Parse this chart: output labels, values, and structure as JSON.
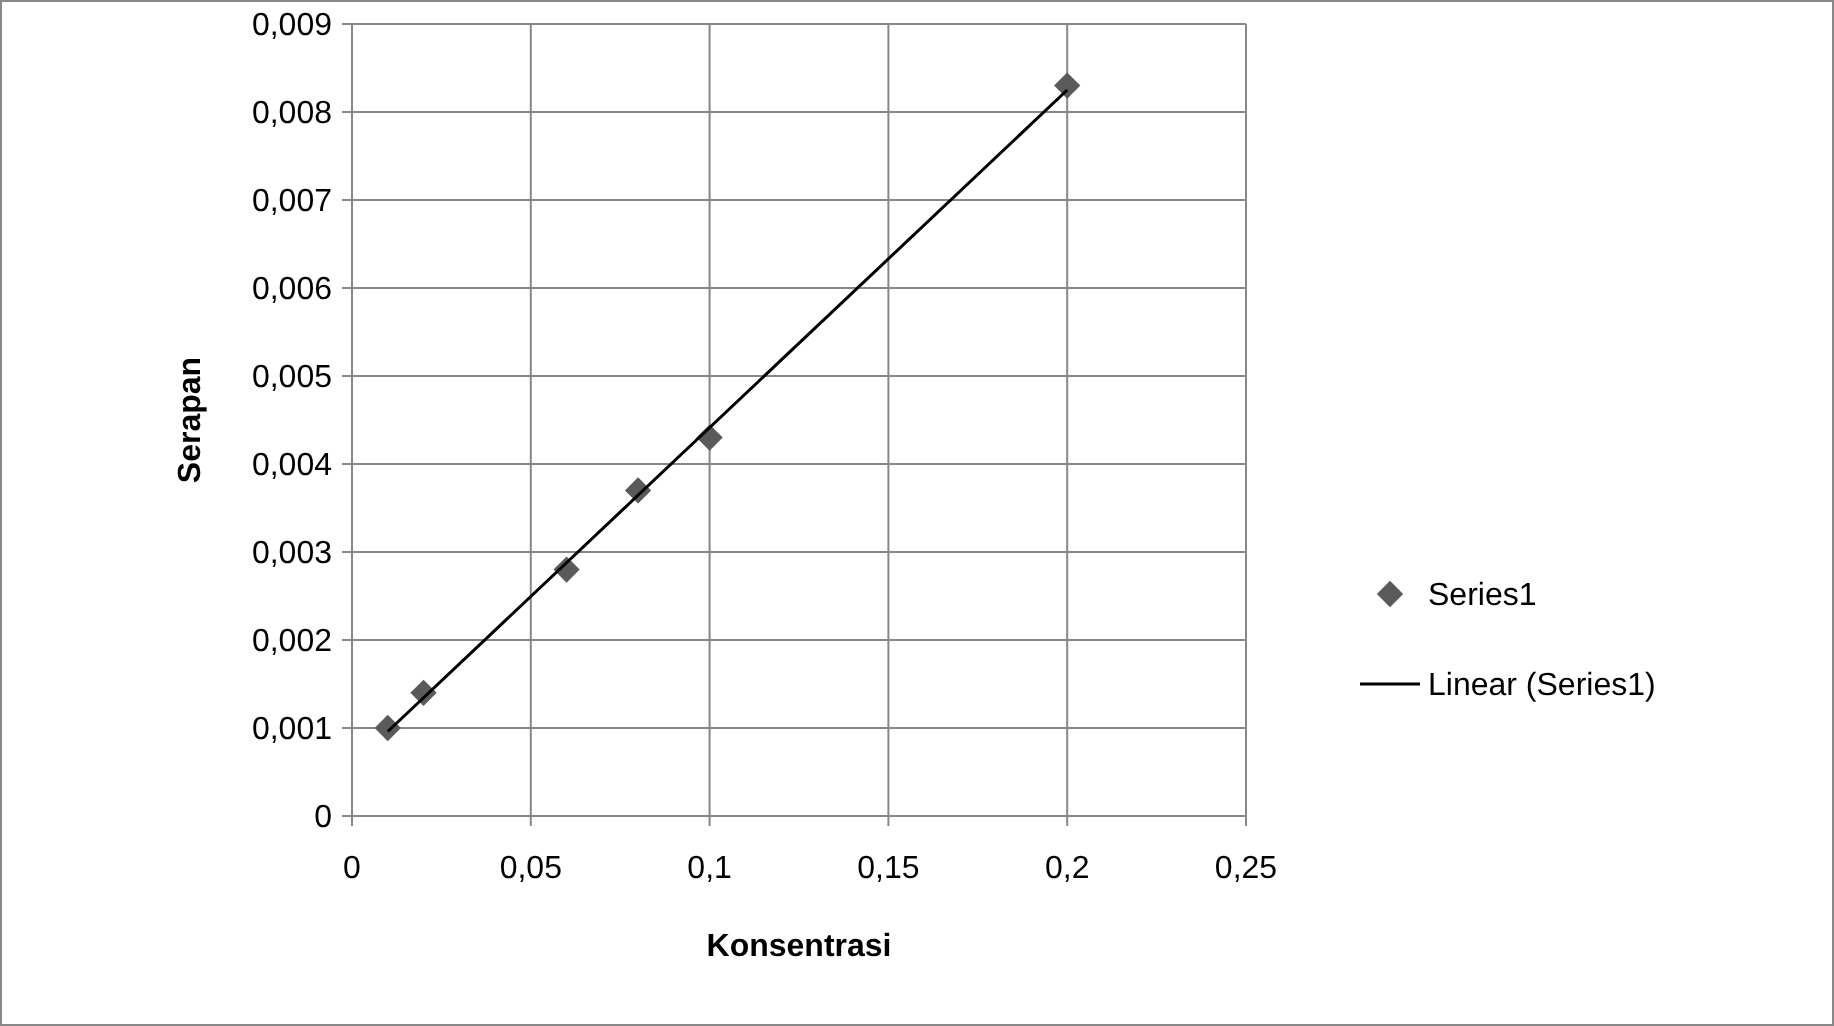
{
  "chart_data": {
    "type": "scatter",
    "xlabel": "Konsentrasi",
    "ylabel": "Serapan",
    "xlim": [
      0,
      0.25
    ],
    "xticks": [
      {
        "value": 0,
        "label": "0"
      },
      {
        "value": 0.05,
        "label": "0,05"
      },
      {
        "value": 0.1,
        "label": "0,1"
      },
      {
        "value": 0.15,
        "label": "0,15"
      },
      {
        "value": 0.2,
        "label": "0,2"
      },
      {
        "value": 0.25,
        "label": "0,25"
      }
    ],
    "ylim": [
      0,
      0.009
    ],
    "yticks": [
      {
        "value": 0,
        "label": "0"
      },
      {
        "value": 0.001,
        "label": "0,001"
      },
      {
        "value": 0.002,
        "label": "0,002"
      },
      {
        "value": 0.003,
        "label": "0,003"
      },
      {
        "value": 0.004,
        "label": "0,004"
      },
      {
        "value": 0.005,
        "label": "0,005"
      },
      {
        "value": 0.006,
        "label": "0,006"
      },
      {
        "value": 0.007,
        "label": "0,007"
      },
      {
        "value": 0.008,
        "label": "0,008"
      },
      {
        "value": 0.009,
        "label": "0,009"
      }
    ],
    "grid": true,
    "legend": "right",
    "marker": "diamond",
    "series": [
      {
        "name": "Series1",
        "color": "#5a5a5a",
        "x": [
          0.01,
          0.02,
          0.06,
          0.08,
          0.1,
          0.2
        ],
        "values": [
          0.001,
          0.0014,
          0.0028,
          0.0037,
          0.0043,
          0.0083
        ]
      },
      {
        "name": "Linear (Series1)",
        "type": "line",
        "color": "#000000",
        "marker": "none",
        "x": [
          0.01,
          0.2
        ],
        "values": [
          0.00096,
          0.00825
        ]
      }
    ]
  }
}
